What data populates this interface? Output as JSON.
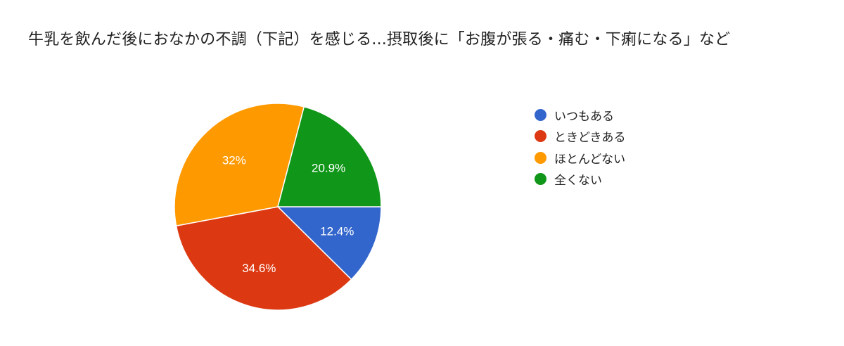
{
  "chart_data": {
    "type": "pie",
    "title": "牛乳を飲んだ後におなかの不調（下記）を感じる...摂取後に「お腹が張る・痛む・下痢になる」など",
    "categories": [
      "いつもある",
      "ときどきある",
      "ほとんどない",
      "全くない"
    ],
    "values": [
      12.4,
      34.6,
      32,
      20.9
    ],
    "labels": [
      "12.4%",
      "34.6%",
      "32%",
      "20.9%"
    ],
    "colors": [
      "#3366cc",
      "#dc3912",
      "#ff9900",
      "#109618"
    ],
    "start_angle": "3 o'clock",
    "direction": "clockwise",
    "legend_position": "right"
  },
  "title": "牛乳を飲んだ後におなかの不調（下記）を感じる...摂取後に「お腹が張る・痛む・下痢になる」など",
  "legend": [
    {
      "label": "いつもある",
      "color": "#3366cc"
    },
    {
      "label": "ときどきある",
      "color": "#dc3912"
    },
    {
      "label": "ほとんどない",
      "color": "#ff9900"
    },
    {
      "label": "全くない",
      "color": "#109618"
    }
  ]
}
